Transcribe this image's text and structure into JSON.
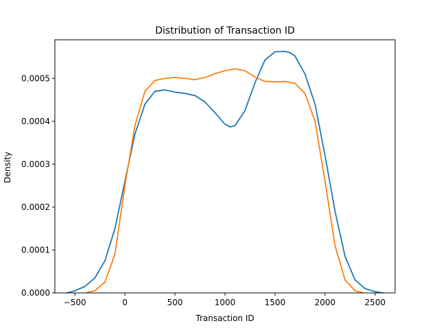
{
  "chart_data": {
    "type": "line",
    "title": "Distribution of Transaction ID",
    "xlabel": "Transaction ID",
    "ylabel": "Density",
    "xlim": [
      -700,
      2700
    ],
    "ylim": [
      0,
      0.00059
    ],
    "grid": false,
    "legend": "none",
    "x_ticks": [
      -500,
      0,
      500,
      1000,
      1500,
      2000,
      2500
    ],
    "x_tick_labels": [
      "−500",
      "0",
      "500",
      "1000",
      "1500",
      "2000",
      "2500"
    ],
    "y_ticks": [
      0,
      0.0001,
      0.0002,
      0.0003,
      0.0004,
      0.0005
    ],
    "y_tick_labels": [
      "0.0000",
      "0.0001",
      "0.0002",
      "0.0003",
      "0.0004",
      "0.0005"
    ],
    "series": [
      {
        "color": "#1f77b4",
        "x": [
          -580,
          -500,
          -400,
          -300,
          -200,
          -100,
          0,
          100,
          200,
          300,
          400,
          500,
          600,
          700,
          800,
          900,
          1000,
          1050,
          1100,
          1200,
          1300,
          1400,
          1500,
          1600,
          1650,
          1700,
          1800,
          1900,
          2000,
          2100,
          2200,
          2300,
          2400,
          2500,
          2580
        ],
        "y": [
          0,
          5e-06,
          1.5e-05,
          3.5e-05,
          7.5e-05,
          0.00015,
          0.00026,
          0.00037,
          0.00044,
          0.00047,
          0.000473,
          0.000468,
          0.000465,
          0.00046,
          0.000445,
          0.00042,
          0.000393,
          0.000387,
          0.00039,
          0.000425,
          0.00049,
          0.000543,
          0.000562,
          0.000563,
          0.00056,
          0.000552,
          0.00051,
          0.00044,
          0.00032,
          0.00019,
          8.5e-05,
          3e-05,
          1e-05,
          3e-06,
          0
        ]
      },
      {
        "color": "#ff7f0e",
        "x": [
          -390,
          -300,
          -200,
          -100,
          0,
          100,
          200,
          300,
          400,
          500,
          600,
          700,
          800,
          900,
          1000,
          1100,
          1200,
          1300,
          1400,
          1500,
          1600,
          1700,
          1800,
          1900,
          2000,
          2100,
          2200,
          2300,
          2380
        ],
        "y": [
          0,
          5e-06,
          2.5e-05,
          9e-05,
          0.00025,
          0.00039,
          0.00047,
          0.000495,
          0.0005,
          0.000502,
          0.0005,
          0.000497,
          0.000502,
          0.000511,
          0.000518,
          0.000522,
          0.000518,
          0.000503,
          0.000493,
          0.000492,
          0.000493,
          0.000488,
          0.000465,
          0.0004,
          0.00026,
          0.00011,
          3e-05,
          5e-06,
          0
        ]
      }
    ]
  }
}
